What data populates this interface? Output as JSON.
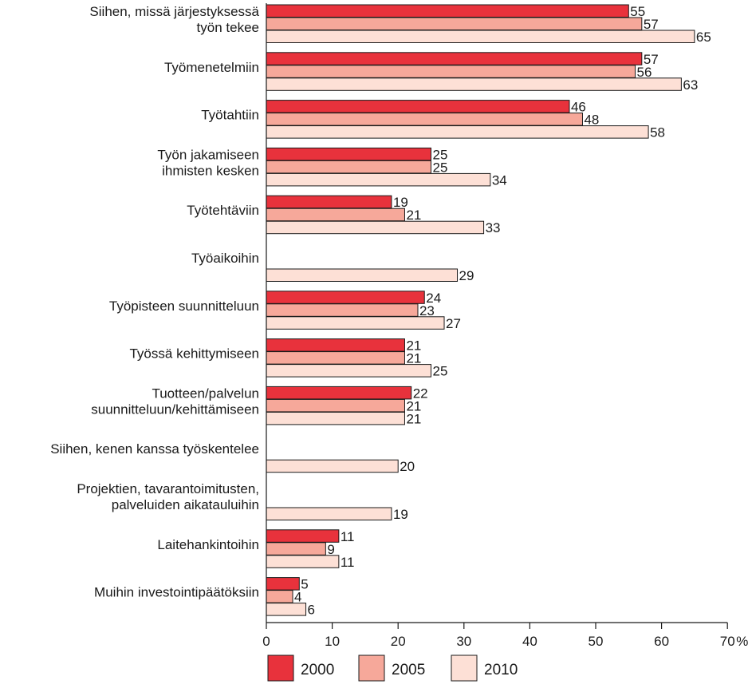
{
  "chart_data": {
    "type": "bar",
    "orientation": "horizontal",
    "categories": [
      [
        "Siihen, missä järjestyksessä",
        "työn tekee"
      ],
      [
        "Työmenetelmiin"
      ],
      [
        "Työtahtiin"
      ],
      [
        "Työn jakamiseen",
        "ihmisten kesken"
      ],
      [
        "Työtehtäviin"
      ],
      [
        "Työaikoihin"
      ],
      [
        "Työpisteen suunnitteluun"
      ],
      [
        "Työssä kehittymiseen"
      ],
      [
        "Tuotteen/palvelun",
        "suunnitteluun/kehittämiseen"
      ],
      [
        "Siihen, kenen kanssa työskentelee"
      ],
      [
        "Projektien, tavarantoimitusten,",
        "palveluiden aikatauluihin"
      ],
      [
        "Laitehankintoihin"
      ],
      [
        "Muihin investointipäätöksiin"
      ]
    ],
    "series": [
      {
        "name": "2000",
        "color": "#e8323c",
        "values": [
          55,
          57,
          46,
          25,
          19,
          null,
          24,
          21,
          22,
          null,
          null,
          11,
          5
        ]
      },
      {
        "name": "2005",
        "color": "#f6a89a",
        "values": [
          57,
          56,
          48,
          25,
          21,
          null,
          23,
          21,
          21,
          null,
          null,
          9,
          4
        ]
      },
      {
        "name": "2010",
        "color": "#fde0d6",
        "values": [
          65,
          63,
          58,
          34,
          33,
          29,
          27,
          25,
          21,
          20,
          19,
          11,
          6
        ]
      }
    ],
    "xlim": [
      0,
      70
    ],
    "xticks": [
      "0",
      "10",
      "20",
      "30",
      "40",
      "50",
      "60",
      "70"
    ],
    "xunit": "%",
    "grid": false,
    "legend_position": "bottom"
  }
}
